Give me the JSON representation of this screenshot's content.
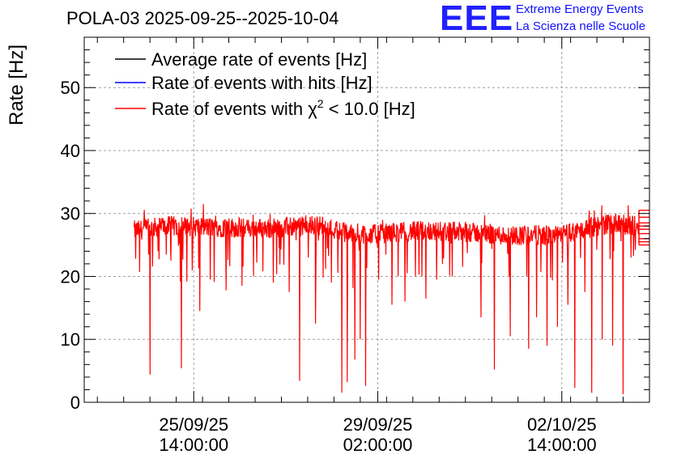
{
  "header": {
    "title": "POLA-03 2025-09-25--2025-10-04",
    "logo_text": "EEE",
    "logo_line1": "Extreme Energy Events",
    "logo_line2": "La Scienza nelle Scuole"
  },
  "colors": {
    "average": "#000000",
    "hits": "#0000ff",
    "chi2": "#ff0000",
    "grid": "#a0a0a0",
    "logo": "#2020ff"
  },
  "chart_data": {
    "type": "line",
    "title": "POLA-03 2025-09-25--2025-10-04",
    "xlabel": "",
    "ylabel": "Rate [Hz]",
    "ylim": [
      0,
      58
    ],
    "xlim": [
      -1.5,
      9.25
    ],
    "x_unit": "days since 2025-09-25 00:00",
    "yticks": [
      0,
      10,
      20,
      30,
      40,
      50
    ],
    "xticks": [
      {
        "x": 0.583,
        "label_date": "25/09/25",
        "label_time": "14:00:00"
      },
      {
        "x": 4.083,
        "label_date": "29/09/25",
        "label_time": "02:00:00"
      },
      {
        "x": 7.583,
        "label_date": "02/10/25",
        "label_time": "14:00:00"
      }
    ],
    "grid": true,
    "legend": {
      "position": "top-left",
      "entries": [
        {
          "label": "Average rate of events [Hz]",
          "series": "average"
        },
        {
          "label": "Rate of events with hits [Hz]",
          "series": "hits"
        },
        {
          "label_prefix": "Rate of events with ",
          "label_chi": "χ",
          "label_sup": "2",
          "label_suffix": " < 10.0 [Hz]",
          "series": "chi2"
        }
      ]
    },
    "series": [
      {
        "name": "chi2",
        "color": "#ff0000",
        "baseline": [
          [
            -0.5,
            27.3
          ],
          [
            0.0,
            28.0
          ],
          [
            1.0,
            27.8
          ],
          [
            2.0,
            27.6
          ],
          [
            2.5,
            27.9
          ],
          [
            3.0,
            28.1
          ],
          [
            3.5,
            26.9
          ],
          [
            4.0,
            26.7
          ],
          [
            5.0,
            27.3
          ],
          [
            6.0,
            26.9
          ],
          [
            6.5,
            26.5
          ],
          [
            7.0,
            26.6
          ],
          [
            7.5,
            26.4
          ],
          [
            8.0,
            27.5
          ],
          [
            8.5,
            28.4
          ],
          [
            9.0,
            28.0
          ]
        ],
        "band_halfwidth": 1.6,
        "start_x": -0.55,
        "end_x": 9.05,
        "dips": [
          {
            "x": -0.52,
            "y": 22.8
          },
          {
            "x": -0.45,
            "y": 20.7
          },
          {
            "x": -0.25,
            "y": 4.4
          },
          {
            "x": -0.1,
            "y": 24.0
          },
          {
            "x": 0.15,
            "y": 22.5
          },
          {
            "x": 0.35,
            "y": 5.4
          },
          {
            "x": 0.45,
            "y": 19.2
          },
          {
            "x": 0.7,
            "y": 14.5
          },
          {
            "x": 0.9,
            "y": 19.5
          },
          {
            "x": 1.2,
            "y": 17.8
          },
          {
            "x": 1.5,
            "y": 18.5
          },
          {
            "x": 1.9,
            "y": 20.8
          },
          {
            "x": 2.1,
            "y": 19.0
          },
          {
            "x": 2.4,
            "y": 17.5
          },
          {
            "x": 2.6,
            "y": 3.4
          },
          {
            "x": 2.9,
            "y": 12.5
          },
          {
            "x": 3.2,
            "y": 19.0
          },
          {
            "x": 3.4,
            "y": 1.5
          },
          {
            "x": 3.5,
            "y": 3.2
          },
          {
            "x": 3.65,
            "y": 6.8
          },
          {
            "x": 3.75,
            "y": 10.0
          },
          {
            "x": 3.85,
            "y": 2.6
          },
          {
            "x": 4.1,
            "y": 19.5
          },
          {
            "x": 4.35,
            "y": 15.5
          },
          {
            "x": 4.6,
            "y": 16.0
          },
          {
            "x": 4.8,
            "y": 20.0
          },
          {
            "x": 5.0,
            "y": 16.5
          },
          {
            "x": 5.2,
            "y": 19.5
          },
          {
            "x": 5.5,
            "y": 20.0
          },
          {
            "x": 5.7,
            "y": 21.5
          },
          {
            "x": 6.05,
            "y": 13.5
          },
          {
            "x": 6.3,
            "y": 5.2
          },
          {
            "x": 6.6,
            "y": 10.5
          },
          {
            "x": 6.95,
            "y": 8.5
          },
          {
            "x": 7.1,
            "y": 13.5
          },
          {
            "x": 7.3,
            "y": 9.0
          },
          {
            "x": 7.5,
            "y": 12.0
          },
          {
            "x": 7.7,
            "y": 15.5
          },
          {
            "x": 7.83,
            "y": 2.3
          },
          {
            "x": 8.02,
            "y": 17.5
          },
          {
            "x": 8.15,
            "y": 1.5
          },
          {
            "x": 8.35,
            "y": 10.0
          },
          {
            "x": 8.55,
            "y": 9.0
          },
          {
            "x": 8.75,
            "y": 1.3
          },
          {
            "x": 8.9,
            "y": 23.0
          },
          {
            "x": 8.98,
            "y": 24.2
          }
        ],
        "tail_levels": [
          30.5,
          29.4,
          28.5,
          28.0,
          27.5,
          26.8,
          26.0,
          25.5,
          25.0
        ]
      }
    ]
  }
}
